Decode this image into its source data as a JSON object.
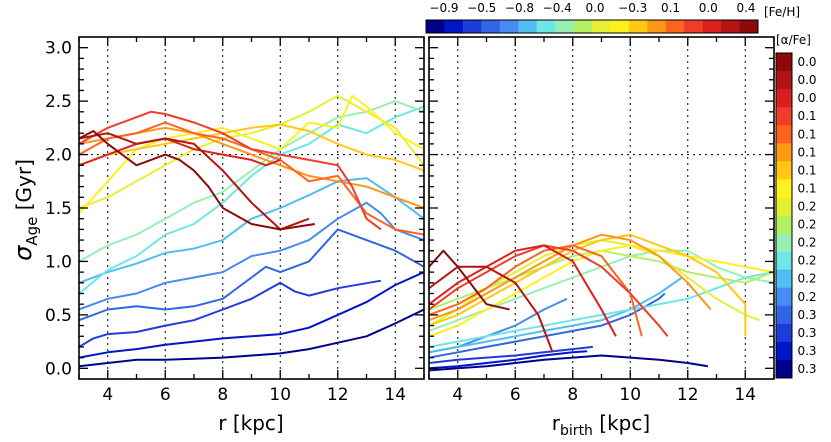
{
  "chart_data": {
    "type": "line",
    "y_label": {
      "sigma": "σ",
      "sub": "Age",
      "unit": " [Gyr]"
    },
    "x_label_left": "r  [kpc]",
    "x_label_right": {
      "main": "r",
      "sub": "birth",
      "unit": " [kpc]"
    },
    "xlim": [
      3,
      15
    ],
    "ylim": [
      -0.1,
      3.1
    ],
    "x_ticks": [
      4,
      6,
      8,
      10,
      12,
      14
    ],
    "y_ticks": [
      0.0,
      0.5,
      1.0,
      1.5,
      2.0,
      2.5,
      3.0
    ],
    "y_tick_labels": [
      "0.0",
      "0.5",
      "1.0",
      "1.5",
      "2.0",
      "2.5",
      "3.0"
    ],
    "grid": "dotted vertical lines at x ticks, dotted horizontal line at y=2.0",
    "feh_colorbar": {
      "title": "[Fe/H]",
      "labels": [
        "−0.9",
        "−0.5",
        "−0.8",
        "−0.4",
        "0.0",
        "−0.3",
        "0.1",
        "0.0",
        "0.4"
      ]
    },
    "alpha_colorbar": {
      "title": "[α/Fe]",
      "labels": [
        "0.0",
        "0.0",
        "0.0",
        "0.1",
        "0.1",
        "0.1",
        "0.1",
        "0.1",
        "0.2",
        "0.2",
        "0.2",
        "0.2",
        "0.2",
        "0.2",
        "0.3",
        "0.3",
        "0.3",
        "0.3"
      ]
    },
    "palette": [
      "#00008c",
      "#0014c8",
      "#1e3cdc",
      "#3264e6",
      "#468cf0",
      "#50bef0",
      "#6ee6e6",
      "#96f0b4",
      "#b4f064",
      "#e6f032",
      "#fff01e",
      "#ffc814",
      "#ff9614",
      "#ff641e",
      "#f03c28",
      "#dc1e1e",
      "#b41414",
      "#8c0a0a"
    ],
    "series_left": [
      {
        "name": "p1",
        "x": [
          3,
          4,
          5,
          6,
          7,
          8,
          9,
          10,
          11,
          12,
          13,
          14,
          15
        ],
        "y": [
          0.02,
          0.05,
          0.08,
          0.08,
          0.09,
          0.1,
          0.12,
          0.14,
          0.18,
          0.24,
          0.3,
          0.42,
          0.55
        ]
      },
      {
        "name": "p2",
        "x": [
          3,
          4,
          5,
          6,
          7,
          8,
          9,
          10,
          11,
          12,
          13,
          14,
          15
        ],
        "y": [
          0.1,
          0.15,
          0.18,
          0.22,
          0.25,
          0.28,
          0.3,
          0.32,
          0.38,
          0.5,
          0.62,
          0.78,
          0.9
        ]
      },
      {
        "name": "p3",
        "x": [
          3,
          3.5,
          4,
          5,
          6,
          7,
          8,
          9,
          10,
          10.5,
          11,
          12,
          13.5
        ],
        "y": [
          0.2,
          0.28,
          0.32,
          0.34,
          0.4,
          0.45,
          0.55,
          0.65,
          0.8,
          0.72,
          0.68,
          0.75,
          0.82
        ]
      },
      {
        "name": "p4",
        "x": [
          3,
          4,
          5,
          6,
          7,
          8,
          9,
          9.5,
          10,
          11,
          12,
          13,
          14,
          15
        ],
        "y": [
          0.45,
          0.55,
          0.58,
          0.55,
          0.58,
          0.65,
          0.85,
          0.95,
          0.9,
          1.0,
          1.3,
          1.2,
          1.1,
          0.95
        ]
      },
      {
        "name": "p5",
        "x": [
          3,
          4,
          5,
          6,
          7,
          8,
          9,
          10,
          11,
          12,
          13,
          13.5,
          14,
          15
        ],
        "y": [
          0.55,
          0.65,
          0.7,
          0.8,
          0.85,
          0.9,
          1.05,
          1.1,
          1.2,
          1.4,
          1.55,
          1.45,
          1.3,
          1.2
        ]
      },
      {
        "name": "p6",
        "x": [
          3,
          4,
          5,
          6,
          7,
          8,
          9,
          10,
          11,
          12,
          13,
          14,
          15
        ],
        "y": [
          0.8,
          0.9,
          0.98,
          1.08,
          1.12,
          1.2,
          1.4,
          1.5,
          1.62,
          1.75,
          1.78,
          1.6,
          1.4
        ]
      },
      {
        "name": "p7",
        "x": [
          3,
          4,
          5,
          6,
          7,
          8,
          9,
          10,
          11,
          12,
          13,
          14,
          15
        ],
        "y": [
          0.7,
          0.92,
          1.05,
          1.25,
          1.35,
          1.55,
          1.8,
          2.0,
          2.1,
          2.28,
          2.2,
          2.35,
          2.45
        ]
      },
      {
        "name": "p8",
        "x": [
          3,
          4,
          5,
          6,
          7,
          8,
          9,
          10,
          11,
          12,
          13,
          14,
          15
        ],
        "y": [
          1.0,
          1.15,
          1.25,
          1.4,
          1.55,
          1.65,
          1.85,
          2.05,
          2.2,
          2.35,
          2.4,
          2.5,
          2.4
        ]
      },
      {
        "name": "p9",
        "x": [
          3,
          4,
          5,
          6,
          7,
          8,
          9,
          10,
          11,
          12,
          13,
          14,
          15
        ],
        "y": [
          1.5,
          1.6,
          1.75,
          1.9,
          2.05,
          2.15,
          2.2,
          2.28,
          2.4,
          2.55,
          2.4,
          2.25,
          1.9
        ]
      },
      {
        "name": "p10",
        "x": [
          3,
          4,
          5,
          6,
          7,
          8,
          9,
          10,
          11,
          12,
          12.5,
          13,
          14,
          15
        ],
        "y": [
          1.45,
          1.75,
          2.05,
          2.15,
          2.2,
          2.25,
          2.15,
          2.05,
          2.3,
          2.25,
          2.55,
          2.45,
          2.2,
          2.05
        ]
      },
      {
        "name": "p11",
        "x": [
          3,
          4,
          5,
          6,
          7,
          8,
          9,
          10,
          11,
          12,
          13,
          14,
          15
        ],
        "y": [
          1.9,
          2.0,
          2.05,
          2.1,
          2.15,
          2.2,
          2.25,
          2.28,
          2.22,
          2.1,
          2.0,
          1.95,
          1.85
        ]
      },
      {
        "name": "p12",
        "x": [
          3,
          4,
          5,
          6,
          7,
          8,
          9,
          10,
          11,
          12,
          13,
          14,
          15
        ],
        "y": [
          2.1,
          2.15,
          2.2,
          2.25,
          2.2,
          2.1,
          2.0,
          1.9,
          1.8,
          1.75,
          1.7,
          1.6,
          1.5
        ]
      },
      {
        "name": "p13",
        "x": [
          3,
          4,
          5,
          6,
          7,
          8,
          9,
          10,
          11,
          12,
          13,
          14,
          15
        ],
        "y": [
          2.0,
          2.15,
          2.2,
          2.3,
          2.2,
          2.15,
          2.05,
          1.95,
          1.75,
          1.8,
          1.45,
          1.3,
          1.25
        ]
      },
      {
        "name": "p14",
        "x": [
          3,
          4,
          5,
          5.5,
          6,
          7,
          8,
          9,
          10,
          11,
          12,
          12.5,
          13,
          13.5
        ],
        "y": [
          2.1,
          2.25,
          2.35,
          2.4,
          2.38,
          2.3,
          2.2,
          2.05,
          2.0,
          1.95,
          1.9,
          1.7,
          1.4,
          1.3
        ]
      },
      {
        "name": "p15",
        "x": [
          3,
          4,
          5,
          6,
          7,
          8,
          9,
          9.5,
          10
        ],
        "y": [
          1.9,
          2.0,
          2.1,
          2.15,
          2.05,
          2.0,
          1.95,
          1.9,
          1.95
        ]
      },
      {
        "name": "p16",
        "x": [
          3,
          4,
          5,
          6,
          7,
          8,
          9,
          10,
          11
        ],
        "y": [
          2.15,
          2.2,
          2.1,
          2.15,
          2.1,
          1.85,
          1.55,
          1.3,
          1.4
        ]
      },
      {
        "name": "p17",
        "x": [
          3,
          3.5,
          4,
          4.5,
          5,
          5.5,
          6,
          6.5,
          7,
          7.5,
          8,
          9,
          10,
          11.2
        ],
        "y": [
          2.15,
          2.22,
          2.1,
          2.0,
          1.9,
          1.95,
          2.0,
          1.95,
          1.85,
          1.7,
          1.5,
          1.35,
          1.3,
          1.35
        ]
      }
    ],
    "series_right": [
      {
        "name": "q1",
        "x": [
          3,
          4,
          5,
          6,
          7,
          8,
          9,
          10,
          11,
          12,
          12.7
        ],
        "y": [
          -0.02,
          0.0,
          0.02,
          0.05,
          0.08,
          0.1,
          0.12,
          0.1,
          0.08,
          0.05,
          0.02
        ]
      },
      {
        "name": "q2",
        "x": [
          3,
          4,
          5,
          6,
          7,
          8,
          8.5
        ],
        "y": [
          0.0,
          0.02,
          0.05,
          0.08,
          0.12,
          0.15,
          0.16
        ]
      },
      {
        "name": "q3",
        "x": [
          3,
          4,
          5,
          6,
          7,
          8,
          8.7
        ],
        "y": [
          0.05,
          0.08,
          0.1,
          0.12,
          0.15,
          0.18,
          0.2
        ]
      },
      {
        "name": "q4",
        "x": [
          3,
          4,
          5,
          6,
          7,
          8,
          9,
          10,
          11,
          11.2
        ],
        "y": [
          0.1,
          0.15,
          0.2,
          0.25,
          0.3,
          0.35,
          0.4,
          0.5,
          0.65,
          0.7
        ]
      },
      {
        "name": "q5",
        "x": [
          3,
          4,
          5,
          6,
          7,
          7.8
        ],
        "y": [
          0.15,
          0.2,
          0.3,
          0.4,
          0.55,
          0.65
        ]
      },
      {
        "name": "q6",
        "x": [
          3,
          4,
          5,
          6,
          7,
          8,
          9,
          10,
          11,
          11.8
        ],
        "y": [
          0.15,
          0.2,
          0.25,
          0.3,
          0.35,
          0.4,
          0.45,
          0.55,
          0.7,
          0.85
        ]
      },
      {
        "name": "q7",
        "x": [
          3,
          4,
          5,
          6,
          7,
          8,
          9,
          10,
          11,
          12,
          13,
          14,
          15
        ],
        "y": [
          0.2,
          0.25,
          0.3,
          0.35,
          0.4,
          0.45,
          0.5,
          0.55,
          0.6,
          0.65,
          0.75,
          0.85,
          0.9
        ]
      },
      {
        "name": "q8",
        "x": [
          3,
          4,
          5,
          6,
          7,
          8,
          9,
          10,
          11,
          12,
          13,
          14,
          15
        ],
        "y": [
          0.35,
          0.45,
          0.55,
          0.65,
          0.75,
          0.85,
          0.95,
          1.05,
          1.1,
          1.1,
          0.95,
          0.85,
          0.8
        ]
      },
      {
        "name": "q9",
        "x": [
          3,
          4,
          5,
          6,
          7,
          8,
          9,
          10,
          11,
          12,
          13,
          14,
          15
        ],
        "y": [
          0.55,
          0.65,
          0.75,
          0.85,
          0.95,
          1.05,
          1.1,
          1.05,
          1.0,
          0.9,
          0.85,
          0.8,
          0.9
        ]
      },
      {
        "name": "q10",
        "x": [
          3,
          4,
          5,
          6,
          7,
          8,
          9,
          10,
          11,
          12,
          13,
          14,
          14.5
        ],
        "y": [
          0.4,
          0.55,
          0.75,
          0.9,
          1.05,
          1.15,
          1.2,
          1.15,
          1.05,
          0.85,
          0.65,
          0.5,
          0.45
        ]
      },
      {
        "name": "q11",
        "x": [
          3,
          4,
          5,
          6,
          7,
          8,
          9,
          10,
          11,
          12,
          13,
          14,
          15
        ],
        "y": [
          0.3,
          0.4,
          0.55,
          0.7,
          0.85,
          1.0,
          1.1,
          1.15,
          1.1,
          1.05,
          1.0,
          0.95,
          0.9
        ]
      },
      {
        "name": "q12",
        "x": [
          3,
          4,
          5,
          6,
          7,
          8,
          9,
          10,
          11,
          12,
          13,
          14,
          14
        ],
        "y": [
          0.4,
          0.5,
          0.65,
          0.8,
          0.95,
          1.1,
          1.2,
          1.25,
          1.15,
          1.05,
          0.9,
          0.6,
          0.3
        ]
      },
      {
        "name": "q13",
        "x": [
          3,
          4,
          5,
          6,
          7,
          8,
          9,
          10,
          11,
          12,
          12.8
        ],
        "y": [
          0.45,
          0.55,
          0.7,
          0.85,
          1.0,
          1.15,
          1.25,
          1.2,
          1.05,
          0.8,
          0.55
        ]
      },
      {
        "name": "q14",
        "x": [
          3,
          4,
          5,
          6,
          7,
          8,
          9,
          10,
          10.4
        ],
        "y": [
          0.5,
          0.6,
          0.75,
          0.95,
          1.1,
          1.15,
          1.05,
          0.7,
          0.3
        ]
      },
      {
        "name": "q15",
        "x": [
          3,
          4,
          5,
          6,
          7,
          8,
          9,
          10,
          11,
          11.3
        ],
        "y": [
          0.55,
          0.75,
          0.9,
          1.05,
          1.15,
          1.1,
          0.95,
          0.7,
          0.4,
          0.3
        ]
      },
      {
        "name": "q16",
        "x": [
          3,
          4,
          5,
          6,
          7,
          8,
          9,
          9.5
        ],
        "y": [
          0.6,
          0.8,
          0.95,
          1.1,
          1.15,
          1.0,
          0.55,
          0.3
        ]
      },
      {
        "name": "q17",
        "x": [
          3,
          4,
          5,
          6,
          6.8,
          7.3
        ],
        "y": [
          0.75,
          0.95,
          0.95,
          0.8,
          0.5,
          0.15
        ]
      },
      {
        "name": "q18",
        "x": [
          3,
          3.5,
          4,
          5,
          5.8
        ],
        "y": [
          0.95,
          1.1,
          0.95,
          0.6,
          0.55
        ]
      }
    ]
  }
}
